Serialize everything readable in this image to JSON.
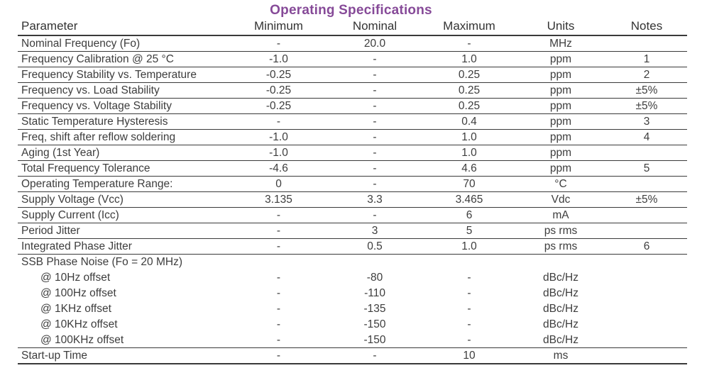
{
  "page": {
    "title": "Operating Specifications",
    "title_color": "#864a98"
  },
  "table": {
    "columns": [
      "Parameter",
      "Minimum",
      "Nominal",
      "Maximum",
      "Units",
      "Notes"
    ],
    "rows": [
      {
        "param": "Nominal Frequency (Fo)",
        "min": "-",
        "nom": "20.0",
        "max": "-",
        "units": "MHz",
        "notes": "",
        "indent": false,
        "divider": true
      },
      {
        "param": "Frequency Calibration @ 25 °C",
        "min": "-1.0",
        "nom": "-",
        "max": "1.0",
        "units": "ppm",
        "notes": "1",
        "indent": false,
        "divider": true
      },
      {
        "param": "Frequency Stability vs. Temperature",
        "min": "-0.25",
        "nom": "-",
        "max": "0.25",
        "units": "ppm",
        "notes": "2",
        "indent": false,
        "divider": true
      },
      {
        "param": "Frequency vs. Load Stability",
        "min": "-0.25",
        "nom": "-",
        "max": "0.25",
        "units": "ppm",
        "notes": "±5%",
        "indent": false,
        "divider": true
      },
      {
        "param": "Frequency vs. Voltage Stability",
        "min": "-0.25",
        "nom": "-",
        "max": "0.25",
        "units": "ppm",
        "notes": "±5%",
        "indent": false,
        "divider": true
      },
      {
        "param": "Static Temperature Hysteresis",
        "min": "-",
        "nom": "-",
        "max": "0.4",
        "units": "ppm",
        "notes": "3",
        "indent": false,
        "divider": true
      },
      {
        "param": "Freq, shift after reflow soldering",
        "min": "-1.0",
        "nom": "-",
        "max": "1.0",
        "units": "ppm",
        "notes": "4",
        "indent": false,
        "divider": true
      },
      {
        "param": "Aging (1st Year)",
        "min": "-1.0",
        "nom": "-",
        "max": "1.0",
        "units": "ppm",
        "notes": "",
        "indent": false,
        "divider": true
      },
      {
        "param": "Total Frequency Tolerance",
        "min": "-4.6",
        "nom": "-",
        "max": "4.6",
        "units": "ppm",
        "notes": "5",
        "indent": false,
        "divider": true
      },
      {
        "param": "Operating Temperature Range:",
        "min": "0",
        "nom": "-",
        "max": "70",
        "units": "°C",
        "notes": "",
        "indent": false,
        "divider": true
      },
      {
        "param": "Supply Voltage (Vcc)",
        "min": "3.135",
        "nom": "3.3",
        "max": "3.465",
        "units": "Vdc",
        "notes": "±5%",
        "indent": false,
        "divider": true
      },
      {
        "param": "Supply Current (Icc)",
        "min": "-",
        "nom": "-",
        "max": "6",
        "units": "mA",
        "notes": "",
        "indent": false,
        "divider": true
      },
      {
        "param": "Period Jitter",
        "min": "-",
        "nom": "3",
        "max": "5",
        "units": "ps rms",
        "notes": "",
        "indent": false,
        "divider": true
      },
      {
        "param": "Integrated Phase Jitter",
        "min": "-",
        "nom": "0.5",
        "max": "1.0",
        "units": "ps rms",
        "notes": "6",
        "indent": false,
        "divider": true
      },
      {
        "param": "SSB Phase Noise (Fo = 20 MHz)",
        "min": "",
        "nom": "",
        "max": "",
        "units": "",
        "notes": "",
        "indent": false,
        "divider": false
      },
      {
        "param": "@ 10Hz offset",
        "min": "-",
        "nom": "-80",
        "max": "-",
        "units": "dBc/Hz",
        "notes": "",
        "indent": true,
        "divider": false
      },
      {
        "param": "@ 100Hz offset",
        "min": "-",
        "nom": "-110",
        "max": "-",
        "units": "dBc/Hz",
        "notes": "",
        "indent": true,
        "divider": false
      },
      {
        "param": "@ 1KHz offset",
        "min": "-",
        "nom": "-135",
        "max": "-",
        "units": "dBc/Hz",
        "notes": "",
        "indent": true,
        "divider": false
      },
      {
        "param": "@ 10KHz offset",
        "min": "-",
        "nom": "-150",
        "max": "-",
        "units": "dBc/Hz",
        "notes": "",
        "indent": true,
        "divider": false
      },
      {
        "param": "@ 100KHz offset",
        "min": "-",
        "nom": "-150",
        "max": "-",
        "units": "dBc/Hz",
        "notes": "",
        "indent": true,
        "divider": true
      },
      {
        "param": "Start-up Time",
        "min": "-",
        "nom": "-",
        "max": "10",
        "units": "ms",
        "notes": "",
        "indent": false,
        "divider": true
      }
    ]
  }
}
